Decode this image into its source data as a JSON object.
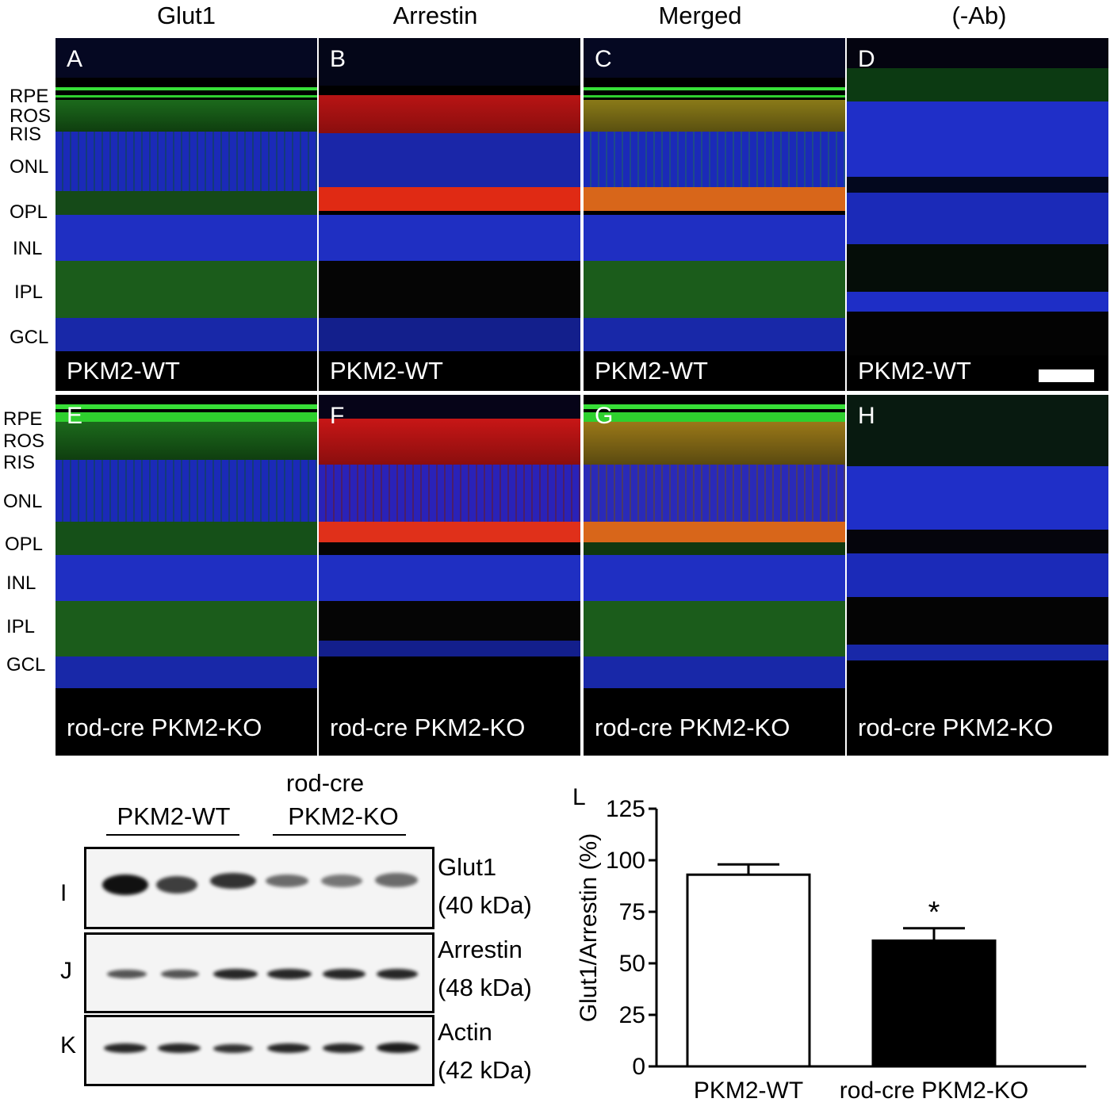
{
  "columns": [
    "Glut1",
    "Arrestin",
    "Merged",
    "(-Ab)"
  ],
  "panels_top": [
    {
      "letter": "A",
      "genotype": "PKM2-WT"
    },
    {
      "letter": "B",
      "genotype": "PKM2-WT"
    },
    {
      "letter": "C",
      "genotype": "PKM2-WT"
    },
    {
      "letter": "D",
      "genotype": "PKM2-WT"
    }
  ],
  "panels_bottom": [
    {
      "letter": "E",
      "genotype": "rod-cre PKM2-KO"
    },
    {
      "letter": "F",
      "genotype": "rod-cre PKM2-KO"
    },
    {
      "letter": "G",
      "genotype": "rod-cre PKM2-KO"
    },
    {
      "letter": "H",
      "genotype": "rod-cre PKM2-KO"
    }
  ],
  "layers": [
    "RPE",
    "ROS",
    "RIS",
    "ONL",
    "OPL",
    "INL",
    "IPL",
    "GCL"
  ],
  "colors": {
    "green": "#22b822",
    "red": "#e01818",
    "blue": "#1f2fd8",
    "orange": "#d86a10",
    "black": "#000000"
  },
  "western": {
    "groups": [
      "PKM2-WT",
      "rod-cre PKM2-KO"
    ],
    "group_lines": [
      [
        "PKM2-WT"
      ],
      [
        "rod-cre",
        "PKM2-KO"
      ]
    ],
    "blots": [
      {
        "letter": "I",
        "label": "Glut1",
        "size": "(40 kDa)",
        "intensities": [
          0.95,
          0.8,
          0.85,
          0.55,
          0.5,
          0.55
        ]
      },
      {
        "letter": "J",
        "label": "Arrestin",
        "size": "(48 kDa)",
        "intensities": [
          0.6,
          0.6,
          0.8,
          0.8,
          0.8,
          0.8
        ]
      },
      {
        "letter": "K",
        "label": "Actin",
        "size": "(42 kDa)",
        "intensities": [
          0.85,
          0.85,
          0.8,
          0.85,
          0.85,
          0.85
        ]
      }
    ]
  },
  "chart_data": {
    "type": "bar",
    "panel_letter": "L",
    "categories": [
      "PKM2-WT",
      "rod-cre PKM2-KO"
    ],
    "values": [
      93,
      61
    ],
    "errors": [
      5,
      6
    ],
    "fills": [
      "#ffffff",
      "#000000"
    ],
    "significance": [
      "",
      "*"
    ],
    "ylabel": "Glut1/Arrestin (%)",
    "ylim": [
      0,
      125
    ],
    "yticks": [
      0,
      25,
      50,
      75,
      100,
      125
    ]
  }
}
